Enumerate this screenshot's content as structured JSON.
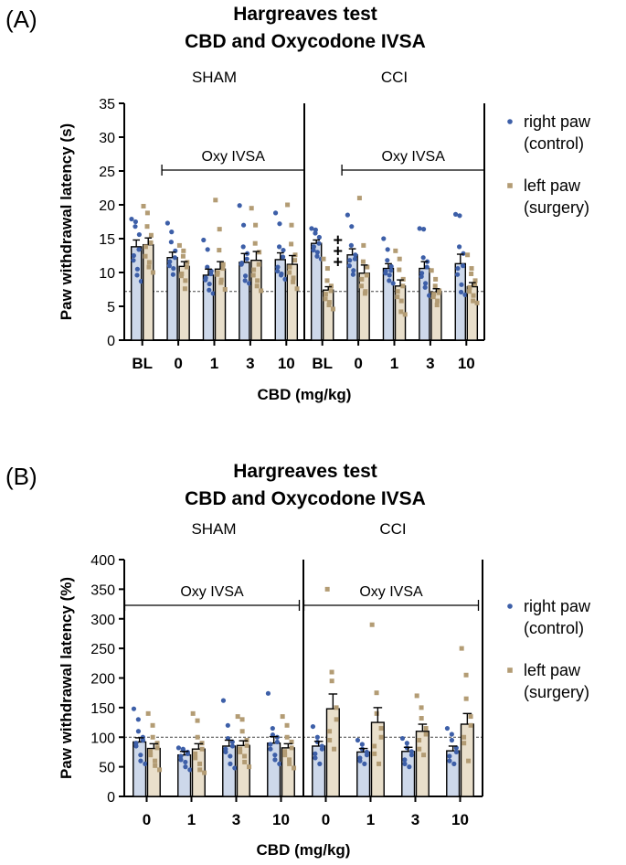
{
  "colors": {
    "right_dot": "#3d5fa8",
    "right_bar": "#cdd8ea",
    "left_dot": "#b39c74",
    "left_bar": "#e9dfcb",
    "axis": "#000000"
  },
  "chart_data": [
    {
      "panel_label": "(A)",
      "type": "bar",
      "title": [
        "Hargreaves test",
        "CBD and Oxycodone IVSA"
      ],
      "xlabel": "CBD (mg/kg)",
      "ylabel": "Paw withdrawal latency (s)",
      "ylim": [
        0,
        35
      ],
      "yticks": [
        0,
        5,
        10,
        15,
        20,
        25,
        30,
        35
      ],
      "reference_line": 7.2,
      "legend": [
        {
          "label1": "right paw",
          "label2": "(control)",
          "series": "right"
        },
        {
          "label1": "left paw",
          "label2": "(surgery)",
          "series": "left"
        }
      ],
      "groups": [
        {
          "name": "SHAM",
          "bracket_label": "Oxy IVSA",
          "categories": [
            "BL",
            "0",
            "1",
            "3",
            "10"
          ],
          "series": [
            {
              "name": "right paw (control)",
              "values": [
                13.8,
                12.2,
                9.6,
                11.5,
                11.9
              ],
              "errors": [
                1.0,
                0.8,
                0.9,
                1.3,
                1.0
              ],
              "points": [
                [
                  17.9,
                  17.5,
                  16.8,
                  15.6,
                  13.4,
                  12.5,
                  11.8,
                  10.5,
                  9.6,
                  8.7
                ],
                [
                  17.3,
                  16.0,
                  14.5,
                  13.2,
                  12.2,
                  11.6,
                  11.0,
                  10.6,
                  9.7
                ],
                [
                  14.8,
                  13.4,
                  10.8,
                  10.2,
                  9.8,
                  9.2,
                  8.9,
                  8.3,
                  7.4,
                  6.9
                ],
                [
                  19.9,
                  17.0,
                  13.8,
                  12.8,
                  12.0,
                  11.4,
                  11.2,
                  9.5,
                  8.8,
                  8.4
                ],
                [
                  18.8,
                  17.2,
                  13.8,
                  13.3,
                  12.3,
                  10.8,
                  10.2,
                  9.8,
                  9.6,
                  9.0
                ]
              ]
            },
            {
              "name": "left paw (surgery)",
              "values": [
                14.1,
                10.9,
                10.5,
                11.8,
                11.2
              ],
              "errors": [
                1.0,
                0.7,
                1.1,
                1.3,
                1.3
              ],
              "points": [
                [
                  19.8,
                  18.8,
                  16.8,
                  15.5,
                  14.4,
                  13.8,
                  12.4,
                  11.5,
                  10.8,
                  10.0
                ],
                [
                  14.0,
                  13.2,
                  12.4,
                  11.5,
                  10.8,
                  9.8,
                  9.5,
                  8.8,
                  7.6
                ],
                [
                  20.7,
                  16.4,
                  13.3,
                  11.2,
                  10.6,
                  10.0,
                  9.7,
                  8.9,
                  8.5,
                  7.5
                ],
                [
                  19.5,
                  17.0,
                  14.3,
                  13.0,
                  11.2,
                  10.4,
                  9.6,
                  8.8,
                  8.0,
                  7.3
                ],
                [
                  20.0,
                  17.0,
                  14.2,
                  12.6,
                  11.8,
                  10.8,
                  10.0,
                  9.2,
                  8.6,
                  7.6
                ]
              ]
            }
          ]
        },
        {
          "name": "CCI",
          "bracket_label": "Oxy IVSA",
          "categories": [
            "BL",
            "0",
            "1",
            "3",
            "10"
          ],
          "annotation": {
            "text": "+\n+\n+",
            "category_index": 0,
            "lines": [
              "+",
              "+",
              "+"
            ]
          },
          "series": [
            {
              "name": "right paw (control)",
              "values": [
                14.3,
                12.6,
                10.6,
                10.6,
                11.3
              ],
              "errors": [
                0.5,
                0.9,
                0.7,
                1.0,
                1.4
              ],
              "points": [
                [
                  16.5,
                  16.3,
                  15.8,
                  15.2,
                  14.3,
                  13.8,
                  13.3,
                  13.0,
                  12.4,
                  12.0
                ],
                [
                  18.5,
                  16.8,
                  14.0,
                  12.6,
                  12.0,
                  11.8,
                  11.0,
                  10.3,
                  9.7
                ],
                [
                  15.0,
                  13.4,
                  11.8,
                  10.9,
                  10.3,
                  10.2,
                  9.9,
                  9.6,
                  8.8,
                  8.4
                ],
                [
                  16.5,
                  16.4,
                  12.2,
                  11.6,
                  10.8,
                  9.9,
                  9.4,
                  8.4,
                  7.8,
                  6.6
                ],
                [
                  18.6,
                  18.4,
                  13.8,
                  12.8,
                  11.0,
                  10.6,
                  9.7,
                  8.2,
                  7.1,
                  6.7
                ]
              ]
            },
            {
              "name": "left paw (surgery)",
              "values": [
                7.4,
                9.9,
                8.0,
                7.1,
                7.9
              ],
              "errors": [
                0.5,
                1.2,
                0.9,
                0.5,
                0.6
              ],
              "points": [
                [
                  12.0,
                  10.6,
                  8.8,
                  8.0,
                  7.3,
                  6.8,
                  6.1,
                  5.6,
                  5.2,
                  4.6
                ],
                [
                  21.0,
                  14.0,
                  11.6,
                  10.8,
                  9.6,
                  9.0,
                  8.0,
                  7.2,
                  6.9
                ],
                [
                  13.2,
                  12.0,
                  10.4,
                  9.0,
                  8.0,
                  7.2,
                  6.4,
                  5.8,
                  4.2,
                  3.8
                ],
                [
                  10.3,
                  9.0,
                  8.0,
                  7.3,
                  7.0,
                  6.8,
                  6.4,
                  5.8,
                  5.2
                ],
                [
                  12.6,
                  10.6,
                  9.8,
                  8.8,
                  8.3,
                  7.8,
                  7.2,
                  6.6,
                  5.8,
                  5.5
                ]
              ]
            }
          ]
        }
      ]
    },
    {
      "panel_label": "(B)",
      "type": "bar",
      "title": [
        "Hargreaves test",
        "CBD and Oxycodone IVSA"
      ],
      "xlabel": "CBD (mg/kg)",
      "ylabel": "Paw withdrawal latency (%)",
      "ylim": [
        0,
        400
      ],
      "yticks": [
        0,
        50,
        100,
        150,
        200,
        250,
        300,
        350,
        400
      ],
      "reference_line": 100,
      "legend": [
        {
          "label1": "right paw",
          "label2": "(control)",
          "series": "right"
        },
        {
          "label1": "left paw",
          "label2": "(surgery)",
          "series": "left"
        }
      ],
      "groups": [
        {
          "name": "SHAM",
          "bracket_label": "Oxy IVSA",
          "categories": [
            "0",
            "1",
            "3",
            "10"
          ],
          "series": [
            {
              "name": "right paw (control)",
              "values": [
                92,
                70,
                85,
                90
              ],
              "errors": [
                7,
                6,
                10,
                11
              ],
              "points": [
                [
                  148,
                  130,
                  110,
                  100,
                  95,
                  90,
                  85,
                  70,
                  60,
                  55
                ],
                [
                  82,
                  80,
                  78,
                  75,
                  72,
                  68,
                  62,
                  58,
                  50,
                  45
                ],
                [
                  162,
                  120,
                  98,
                  92,
                  85,
                  80,
                  75,
                  68,
                  55,
                  48
                ],
                [
                  174,
                  115,
                  104,
                  100,
                  92,
                  88,
                  80,
                  70,
                  62,
                  55
                ]
              ]
            },
            {
              "name": "left paw (surgery)",
              "values": [
                81,
                80,
                86,
                82
              ],
              "errors": [
                8,
                9,
                8,
                7
              ],
              "points": [
                [
                  140,
                  120,
                  100,
                  90,
                  82,
                  76,
                  70,
                  60,
                  52,
                  45
                ],
                [
                  140,
                  128,
                  100,
                  90,
                  80,
                  72,
                  65,
                  55,
                  45,
                  40
                ],
                [
                  135,
                  130,
                  110,
                  95,
                  86,
                  80,
                  75,
                  68,
                  58,
                  50
                ],
                [
                  135,
                  120,
                  100,
                  92,
                  82,
                  76,
                  70,
                  62,
                  55,
                  48
                ]
              ]
            }
          ]
        },
        {
          "name": "CCI",
          "bracket_label": "Oxy IVSA",
          "categories": [
            "0",
            "1",
            "3",
            "10"
          ],
          "series": [
            {
              "name": "right paw (control)",
              "values": [
                85,
                75,
                76,
                77
              ],
              "errors": [
                8,
                6,
                7,
                8
              ],
              "points": [
                [
                  118,
                  100,
                  92,
                  85,
                  80,
                  72,
                  65,
                  55
                ],
                [
                  95,
                  88,
                  80,
                  75,
                  70,
                  65,
                  60,
                  55
                ],
                [
                  98,
                  90,
                  82,
                  76,
                  70,
                  62,
                  55,
                  50
                ],
                [
                  115,
                  105,
                  95,
                  82,
                  75,
                  68,
                  60,
                  55
                ]
              ]
            },
            {
              "name": "left paw (surgery)",
              "values": [
                148,
                125,
                110,
                122
              ],
              "errors": [
                25,
                25,
                12,
                18
              ],
              "points": [
                [
                  350,
                  210,
                  195,
                  150,
                  130,
                  110,
                  95,
                  80
                ],
                [
                  290,
                  175,
                  140,
                  115,
                  100,
                  85,
                  72,
                  55
                ],
                [
                  170,
                  150,
                  132,
                  115,
                  105,
                  95,
                  80,
                  70
                ],
                [
                  250,
                  205,
                  165,
                  135,
                  120,
                  100,
                  90,
                  60
                ]
              ]
            }
          ]
        }
      ]
    }
  ]
}
